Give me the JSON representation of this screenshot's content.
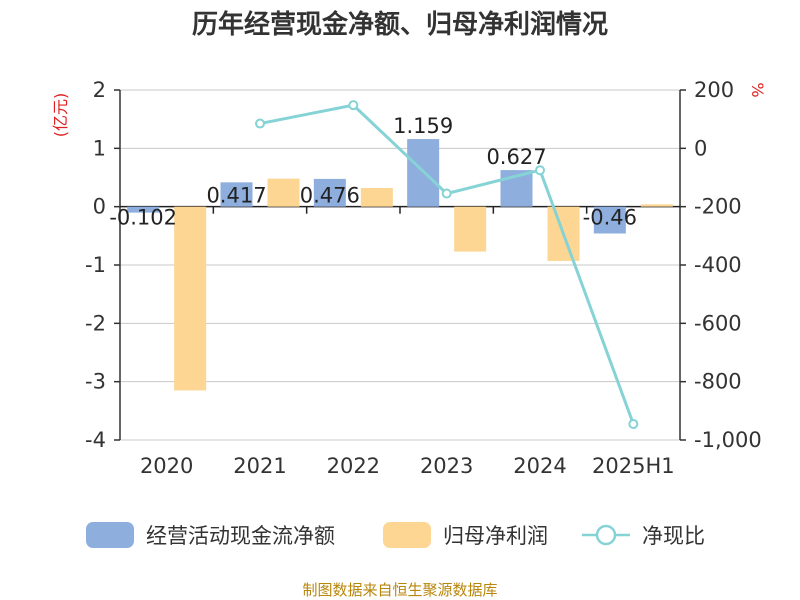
{
  "colors": {
    "bar1": "#8eaedd",
    "bar2": "#fdd693",
    "line": "#86d3d6",
    "unit": "#e02020",
    "source": "#b8860b"
  },
  "chart_data": {
    "type": "bar",
    "title": "历年经营现金净额、归母净利润情况",
    "categories": [
      "2020",
      "2021",
      "2022",
      "2023",
      "2024",
      "2025H1"
    ],
    "left_axis": {
      "unit": "(亿元)",
      "min": -4,
      "max": 2,
      "ticks": [
        "2",
        "1",
        "0",
        "-1",
        "-2",
        "-3",
        "-4"
      ]
    },
    "right_axis": {
      "unit": "%",
      "min": -1000,
      "max": 200,
      "ticks": [
        "200",
        "0",
        "-200",
        "-400",
        "-600",
        "-800",
        "-1,000"
      ]
    },
    "series": [
      {
        "name": "经营活动现金流净额",
        "kind": "bar",
        "axis": "left",
        "values": [
          -0.102,
          0.417,
          0.476,
          1.159,
          0.627,
          -0.46
        ],
        "labels": [
          "-0.102",
          "0.417",
          "0.476",
          "1.159",
          "0.627",
          "-0.46"
        ]
      },
      {
        "name": "归母净利润",
        "kind": "bar",
        "axis": "left",
        "values": [
          -3.15,
          0.48,
          0.32,
          -0.77,
          -0.93,
          0.04
        ]
      },
      {
        "name": "净现比",
        "kind": "line",
        "axis": "right",
        "values": [
          null,
          85,
          148,
          -155,
          -75,
          -945
        ]
      }
    ],
    "grid": true,
    "legend_position": "bottom"
  },
  "source_text": "制图数据来自恒生聚源数据库"
}
